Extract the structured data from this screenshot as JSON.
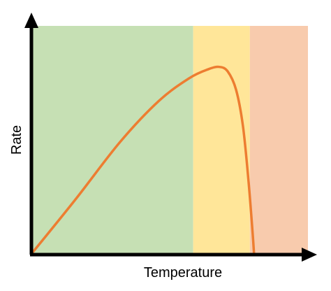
{
  "chart_data": {
    "type": "line",
    "title": "",
    "xlabel": "Temperature",
    "ylabel": "Rate",
    "grid": false,
    "legend": "none",
    "background_bands": [
      {
        "x_from": 0.0,
        "x_to": 0.585,
        "color": "#c6e0b4"
      },
      {
        "x_from": 0.585,
        "x_to": 0.79,
        "color": "#ffe699"
      },
      {
        "x_from": 0.79,
        "x_to": 1.0,
        "color": "#f8cbad"
      }
    ],
    "series": [
      {
        "color": "#ed7d31",
        "points": [
          [
            0.0,
            0.0
          ],
          [
            0.16,
            0.24
          ],
          [
            0.32,
            0.49
          ],
          [
            0.46,
            0.67
          ],
          [
            0.57,
            0.77
          ],
          [
            0.64,
            0.81
          ],
          [
            0.68,
            0.82
          ],
          [
            0.71,
            0.8
          ],
          [
            0.74,
            0.72
          ],
          [
            0.765,
            0.56
          ],
          [
            0.785,
            0.32
          ],
          [
            0.8,
            0.09
          ],
          [
            0.805,
            0.0
          ]
        ]
      }
    ],
    "xlim": [
      0,
      1
    ],
    "ylim": [
      0,
      1
    ]
  },
  "colors": {
    "axis": "#000000"
  }
}
